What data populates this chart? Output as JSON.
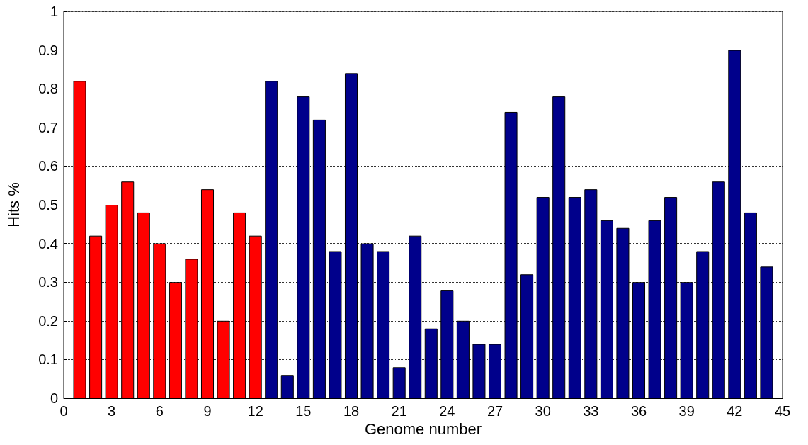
{
  "chart_data": {
    "type": "bar",
    "xlabel": "Genome number",
    "ylabel": "Hits %",
    "series": [
      {
        "color": "#ff0000",
        "x": [
          1,
          2,
          3,
          4,
          5,
          6,
          7,
          8,
          9,
          10,
          11,
          12
        ],
        "values": [
          0.82,
          0.42,
          0.5,
          0.56,
          0.48,
          0.4,
          0.3,
          0.36,
          0.54,
          0.2,
          0.48,
          0.42
        ]
      },
      {
        "color": "#00008b",
        "x": [
          13,
          14,
          15,
          16,
          17,
          18,
          19,
          20,
          21,
          22,
          23,
          24,
          25,
          26,
          27,
          28,
          29,
          30,
          31,
          32,
          33,
          34,
          35,
          36,
          37,
          38,
          39,
          40,
          41,
          42,
          43,
          44
        ],
        "values": [
          0.82,
          0.06,
          0.78,
          0.72,
          0.38,
          0.84,
          0.4,
          0.38,
          0.08,
          0.42,
          0.18,
          0.28,
          0.2,
          0.14,
          0.14,
          0.74,
          0.32,
          0.52,
          0.78,
          0.52,
          0.54,
          0.46,
          0.44,
          0.3,
          0.46,
          0.52,
          0.3,
          0.38,
          0.56,
          0.9,
          0.48,
          0.34
        ]
      }
    ],
    "xlim": [
      0,
      45
    ],
    "xticks": [
      0,
      3,
      6,
      9,
      12,
      15,
      18,
      21,
      24,
      27,
      30,
      33,
      36,
      39,
      42,
      45
    ],
    "ylim": [
      0,
      1
    ],
    "yticks": [
      0,
      0.1,
      0.2,
      0.3,
      0.4,
      0.5,
      0.6,
      0.7,
      0.8,
      0.9,
      1
    ],
    "grid": "y"
  }
}
